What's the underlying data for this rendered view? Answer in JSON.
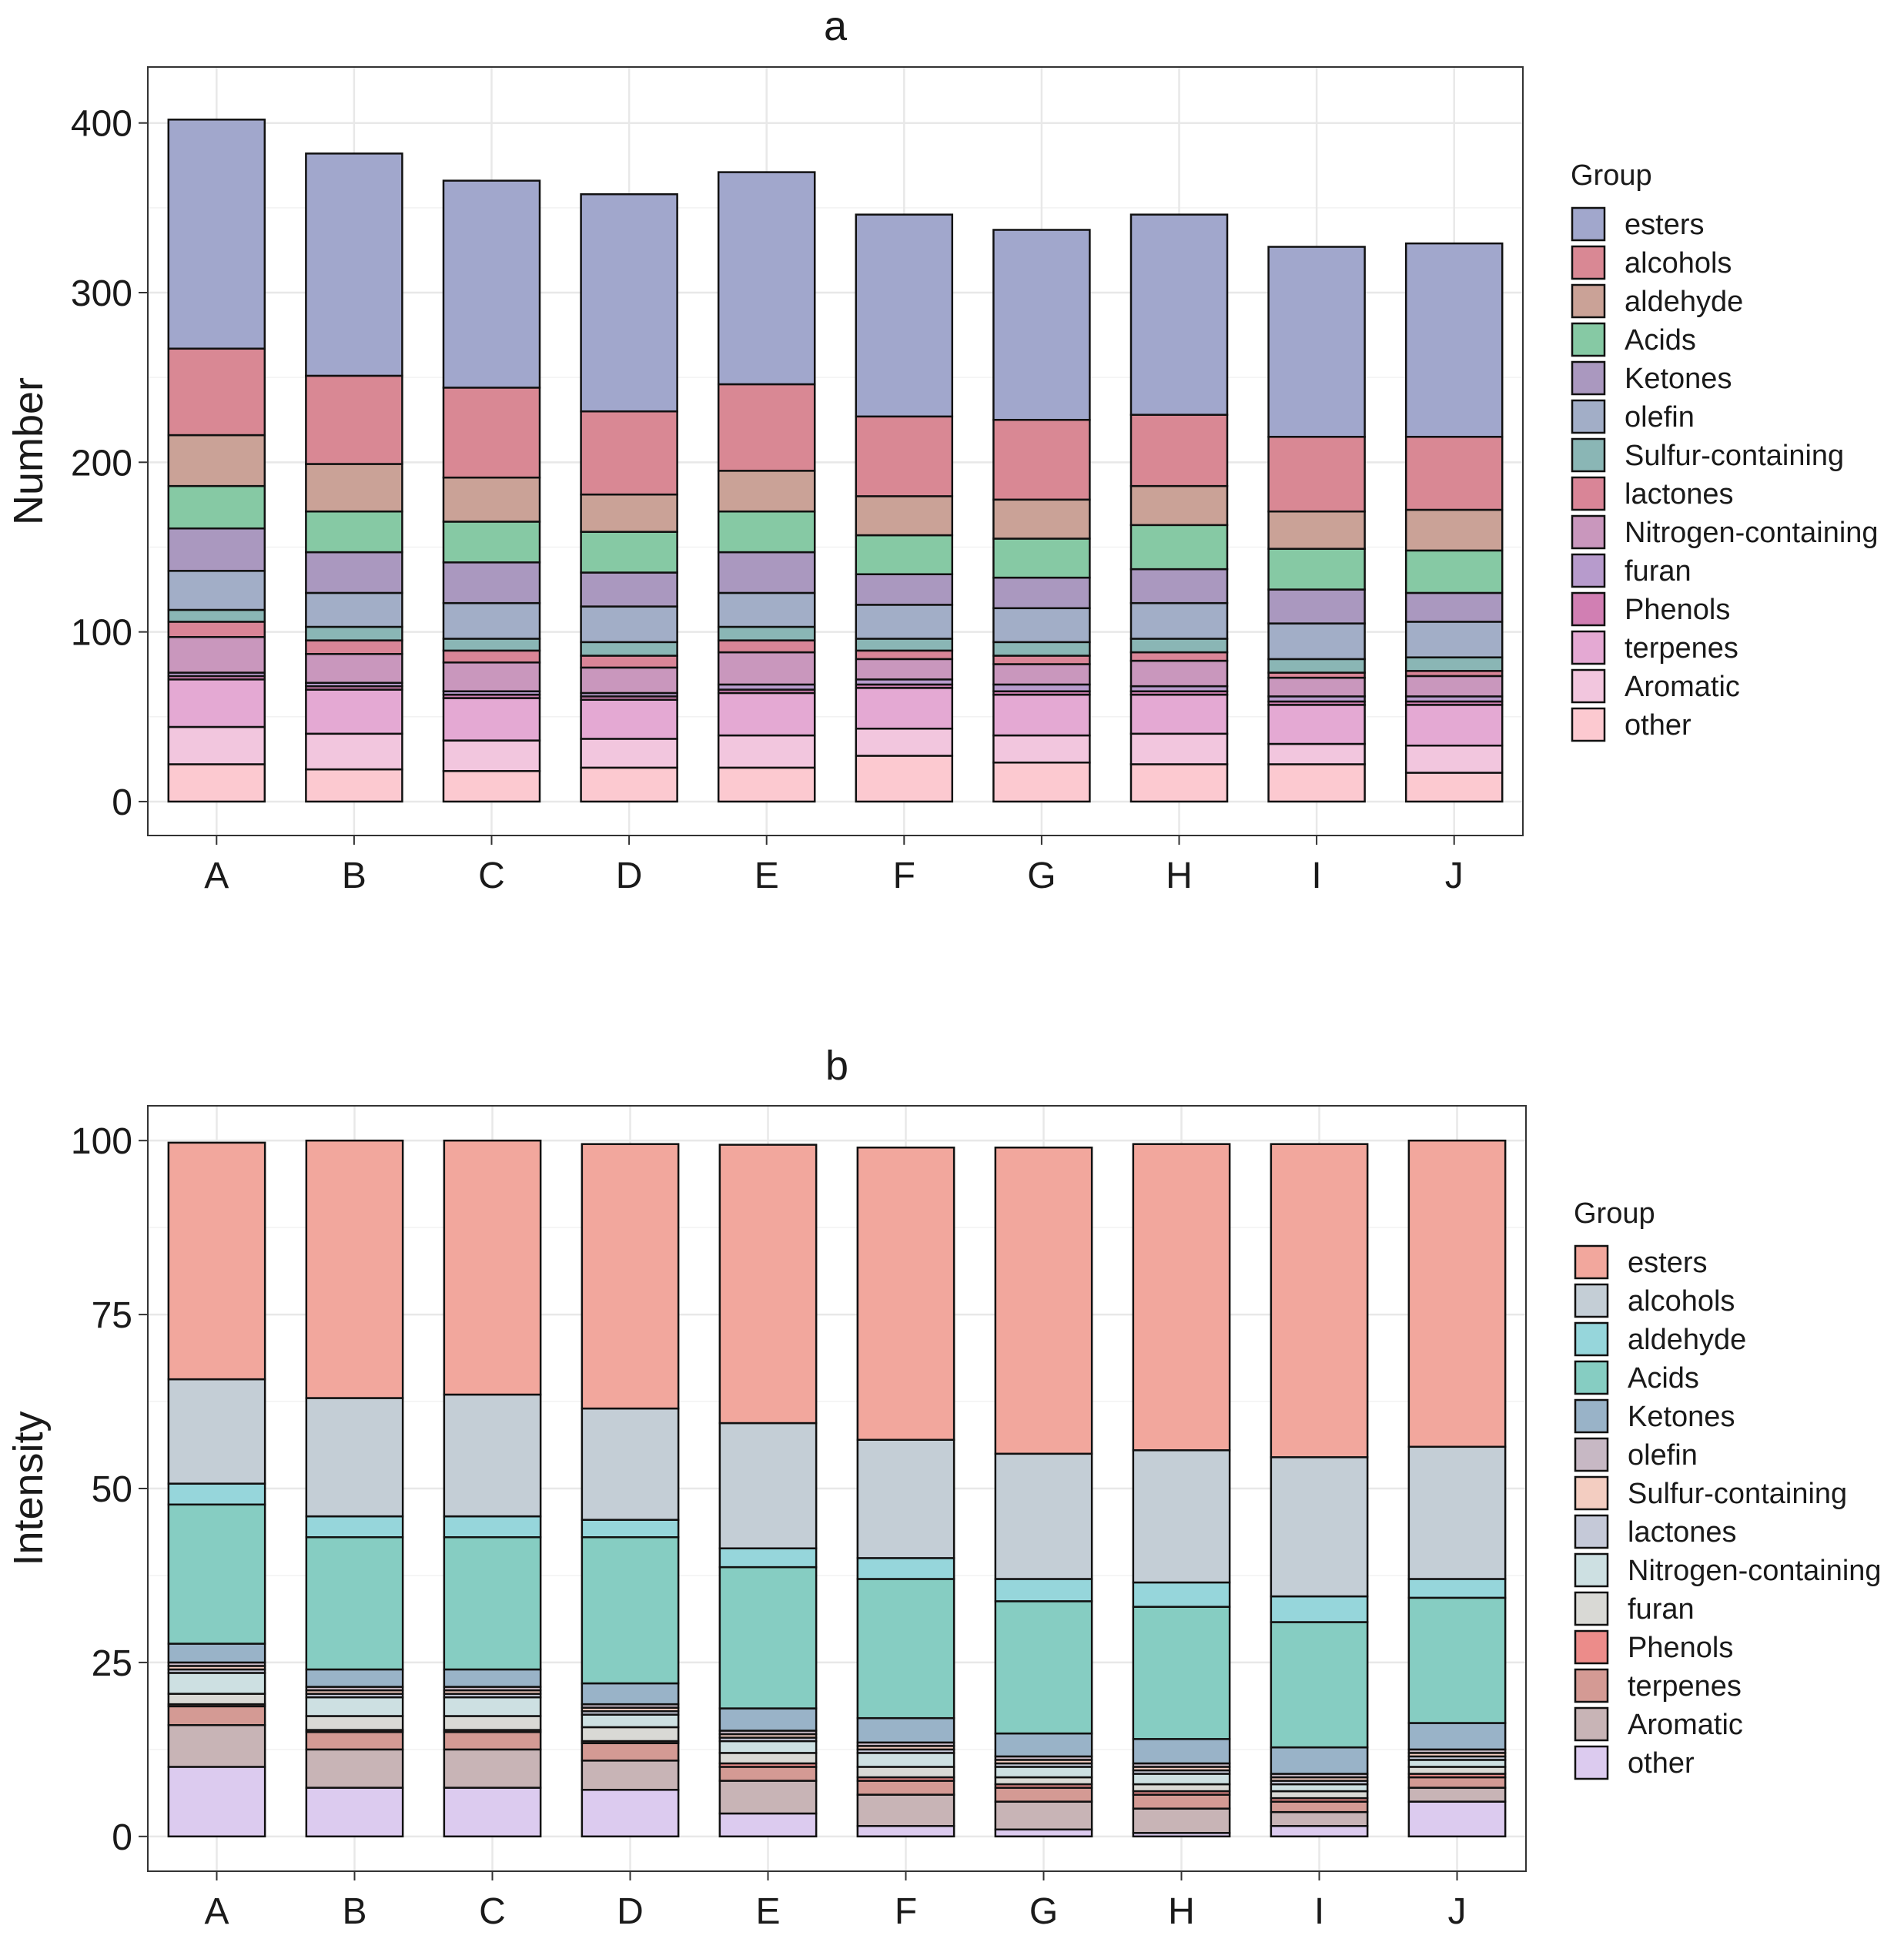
{
  "chart_data": [
    {
      "type": "bar",
      "stacked": true,
      "title": "a",
      "xlabel": "",
      "ylabel": "Number",
      "ylim": [
        -20,
        433
      ],
      "yticks": [
        0,
        100,
        200,
        300,
        400
      ],
      "grid": true,
      "legend_title": "Group",
      "legend_position": "right",
      "categories": [
        "A",
        "B",
        "C",
        "D",
        "E",
        "F",
        "G",
        "H",
        "I",
        "J"
      ],
      "series": [
        {
          "name": "other",
          "color": "#fcc9d0",
          "values": [
            22,
            19,
            18,
            20,
            20,
            27,
            23,
            22,
            22,
            17
          ]
        },
        {
          "name": "Aromatic",
          "color": "#f2c6de",
          "values": [
            22,
            21,
            18,
            17,
            19,
            16,
            16,
            18,
            12,
            16
          ]
        },
        {
          "name": "terpenes",
          "color": "#e4a9d3",
          "values": [
            28,
            26,
            25,
            23,
            25,
            24,
            24,
            23,
            23,
            24
          ]
        },
        {
          "name": "Phenols",
          "color": "#d17fb3",
          "values": [
            2,
            2,
            2,
            2,
            2,
            2,
            2,
            2,
            2,
            2
          ]
        },
        {
          "name": "furan",
          "color": "#b79bcc",
          "values": [
            2,
            2,
            2,
            2,
            3,
            3,
            4,
            3,
            3,
            3
          ]
        },
        {
          "name": "Nitrogen-containing",
          "color": "#c997bd",
          "values": [
            21,
            17,
            17,
            15,
            19,
            12,
            12,
            15,
            11,
            12
          ]
        },
        {
          "name": "lactones",
          "color": "#d98597",
          "values": [
            9,
            8,
            7,
            7,
            7,
            5,
            5,
            5,
            3,
            3
          ]
        },
        {
          "name": "Sulfur-containing",
          "color": "#8ab6b5",
          "values": [
            7,
            8,
            7,
            8,
            8,
            7,
            8,
            8,
            8,
            8
          ]
        },
        {
          "name": "olefin",
          "color": "#a2aec7",
          "values": [
            23,
            20,
            21,
            21,
            20,
            20,
            20,
            21,
            21,
            21
          ]
        },
        {
          "name": "Ketones",
          "color": "#aa98bf",
          "values": [
            25,
            24,
            24,
            20,
            24,
            18,
            18,
            20,
            20,
            17
          ]
        },
        {
          "name": "Acids",
          "color": "#86c9a4",
          "values": [
            25,
            24,
            24,
            24,
            24,
            23,
            23,
            26,
            24,
            25
          ]
        },
        {
          "name": "aldehyde",
          "color": "#caa297",
          "values": [
            30,
            28,
            26,
            22,
            24,
            23,
            23,
            23,
            22,
            24
          ]
        },
        {
          "name": "alcohols",
          "color": "#d98894",
          "values": [
            51,
            52,
            53,
            49,
            51,
            47,
            47,
            42,
            44,
            43
          ]
        },
        {
          "name": "esters",
          "color": "#a1a7cc",
          "values": [
            135,
            131,
            122,
            128,
            125,
            119,
            112,
            118,
            112,
            114
          ]
        }
      ]
    },
    {
      "type": "bar",
      "stacked": true,
      "title": "b",
      "xlabel": "",
      "ylabel": "Intensity",
      "ylim": [
        -5,
        105
      ],
      "yticks": [
        0,
        25,
        50,
        75,
        100
      ],
      "grid": true,
      "legend_title": "Group",
      "legend_position": "right",
      "categories": [
        "A",
        "B",
        "C",
        "D",
        "E",
        "F",
        "G",
        "H",
        "I",
        "J"
      ],
      "series": [
        {
          "name": "other",
          "color": "#dccbef",
          "values": [
            10,
            7,
            7,
            6.7,
            3.3,
            1.5,
            1,
            0.5,
            1.5,
            5
          ]
        },
        {
          "name": "Aromatic",
          "color": "#c8b4b6",
          "values": [
            6,
            5.5,
            5.5,
            4.2,
            4.7,
            4.5,
            4,
            3.5,
            2,
            2
          ]
        },
        {
          "name": "terpenes",
          "color": "#d49a94",
          "values": [
            2.7,
            2.5,
            2.5,
            2.5,
            2,
            2,
            2,
            2,
            1.5,
            1.5
          ]
        },
        {
          "name": "Phenols",
          "color": "#ec8c8a",
          "values": [
            0.3,
            0.3,
            0.3,
            0.3,
            0.5,
            0.5,
            0.5,
            0.5,
            0.5,
            0.5
          ]
        },
        {
          "name": "furan",
          "color": "#d9d9d5",
          "values": [
            1.5,
            2,
            2,
            2,
            1.5,
            1.5,
            1,
            1,
            1,
            1
          ]
        },
        {
          "name": "Nitrogen-containing",
          "color": "#cde0e2",
          "values": [
            3,
            2.7,
            2.7,
            1.8,
            1.7,
            2,
            1.5,
            1.5,
            1,
            1
          ]
        },
        {
          "name": "lactones",
          "color": "#c5c9d8",
          "values": [
            0.5,
            0.5,
            0.5,
            0.5,
            0.5,
            0.5,
            0.5,
            0.5,
            0.5,
            0.5
          ]
        },
        {
          "name": "Sulfur-containing",
          "color": "#f3cdc1",
          "values": [
            0.5,
            0.5,
            0.5,
            0.5,
            0.5,
            0.5,
            0.5,
            0.5,
            0.5,
            0.5
          ]
        },
        {
          "name": "olefin",
          "color": "#c7b8c4",
          "values": [
            0.5,
            0.5,
            0.5,
            0.5,
            0.5,
            0.5,
            0.5,
            0.5,
            0.5,
            0.5
          ]
        },
        {
          "name": "Ketones",
          "color": "#99b3c8",
          "values": [
            2.7,
            2.5,
            2.5,
            3,
            3.2,
            3.5,
            3.3,
            3.5,
            3.8,
            3.8
          ]
        },
        {
          "name": "Acids",
          "color": "#86cdc2",
          "values": [
            20,
            19,
            19,
            21,
            20.3,
            20,
            19,
            19,
            18,
            18
          ]
        },
        {
          "name": "aldehyde",
          "color": "#96d6db",
          "values": [
            3,
            3,
            3,
            2.5,
            2.7,
            3,
            3.2,
            3.5,
            3.7,
            2.7
          ]
        },
        {
          "name": "alcohols",
          "color": "#c4ced6",
          "values": [
            15,
            17,
            17.5,
            16,
            18,
            17,
            18,
            19,
            20,
            19
          ]
        },
        {
          "name": "esters",
          "color": "#f2a79d",
          "values": [
            34,
            37,
            36.5,
            38,
            40,
            42,
            44,
            44,
            45,
            44
          ]
        }
      ]
    }
  ]
}
